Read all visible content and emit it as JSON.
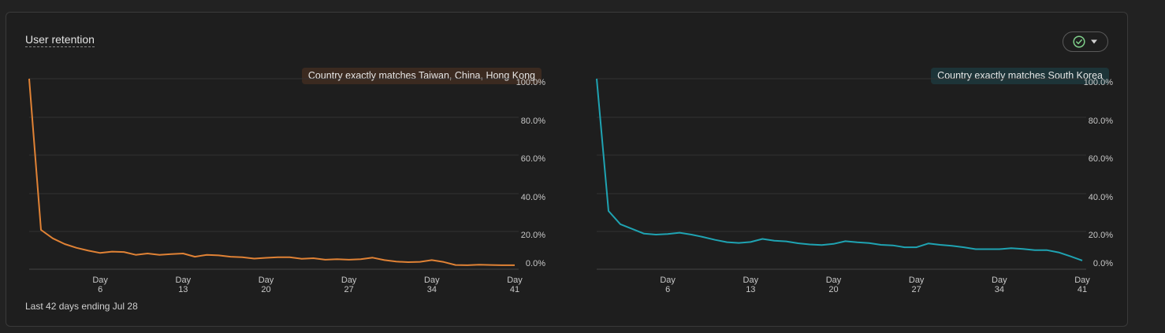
{
  "card": {
    "title": "User retention",
    "footer": "Last 42 days ending Jul 28",
    "status_icon": "check-circle-icon",
    "dropdown_icon": "caret-down-icon"
  },
  "colors": {
    "series_left": "#e08235",
    "series_right": "#1fa3b2",
    "chip_left_bg": "#3b2a20",
    "chip_right_bg": "#1d3438"
  },
  "chart_data": [
    {
      "type": "line",
      "filter_label": "Country exactly matches Taiwan, China, Hong Kong",
      "x": [
        0,
        1,
        2,
        3,
        4,
        5,
        6,
        7,
        8,
        9,
        10,
        11,
        12,
        13,
        14,
        15,
        16,
        17,
        18,
        19,
        20,
        21,
        22,
        23,
        24,
        25,
        26,
        27,
        28,
        29,
        30,
        31,
        32,
        33,
        34,
        35,
        36,
        37,
        38,
        39,
        40,
        41
      ],
      "series": [
        {
          "values": [
            100,
            20,
            15.5,
            12.5,
            10.5,
            9,
            7.8,
            8.5,
            8.3,
            6.8,
            7.5,
            6.8,
            7.2,
            7.5,
            5.8,
            6.8,
            6.5,
            5.8,
            5.5,
            4.8,
            5.2,
            5.5,
            5.5,
            4.7,
            5.0,
            4.2,
            4.5,
            4.2,
            4.5,
            5.3,
            4.0,
            3.2,
            2.9,
            3.1,
            4.0,
            3.0,
            1.4,
            1.3,
            1.6,
            1.4,
            1.3,
            1.3
          ]
        }
      ],
      "xticks": [
        {
          "day": 6,
          "label": "Day",
          "num": "6"
        },
        {
          "day": 13,
          "label": "Day",
          "num": "13"
        },
        {
          "day": 20,
          "label": "Day",
          "num": "20"
        },
        {
          "day": 27,
          "label": "Day",
          "num": "27"
        },
        {
          "day": 34,
          "label": "Day",
          "num": "34"
        },
        {
          "day": 41,
          "label": "Day",
          "num": "41"
        }
      ],
      "yticks": [
        "100.0%",
        "80.0%",
        "60.0%",
        "40.0%",
        "20.0%",
        "0.0%"
      ],
      "ylim": [
        0,
        100
      ],
      "grid": true
    },
    {
      "type": "line",
      "filter_label": "Country exactly matches South Korea",
      "x": [
        0,
        1,
        2,
        3,
        4,
        5,
        6,
        7,
        8,
        9,
        10,
        11,
        12,
        13,
        14,
        15,
        16,
        17,
        18,
        19,
        20,
        21,
        22,
        23,
        24,
        25,
        26,
        27,
        28,
        29,
        30,
        31,
        32,
        33,
        34,
        35,
        36,
        37,
        38,
        39,
        40,
        41
      ],
      "series": [
        {
          "values": [
            100,
            30,
            23,
            20.5,
            18,
            17.5,
            17.8,
            18.5,
            17.5,
            16.2,
            14.7,
            13.5,
            13.1,
            13.6,
            15.2,
            14.3,
            13.9,
            12.9,
            12.3,
            12.0,
            12.6,
            14.0,
            13.4,
            13.0,
            12.1,
            11.8,
            10.8,
            10.8,
            12.8,
            12.1,
            11.6,
            10.8,
            9.8,
            9.8,
            9.8,
            10.3,
            9.9,
            9.3,
            9.3,
            8.1,
            6.0,
            3.8
          ]
        }
      ],
      "xticks": [
        {
          "day": 6,
          "label": "Day",
          "num": "6"
        },
        {
          "day": 13,
          "label": "Day",
          "num": "13"
        },
        {
          "day": 20,
          "label": "Day",
          "num": "20"
        },
        {
          "day": 27,
          "label": "Day",
          "num": "27"
        },
        {
          "day": 34,
          "label": "Day",
          "num": "34"
        },
        {
          "day": 41,
          "label": "Day",
          "num": "41"
        }
      ],
      "yticks": [
        "100.0%",
        "80.0%",
        "60.0%",
        "40.0%",
        "20.0%",
        "0.0%"
      ],
      "ylim": [
        0,
        100
      ],
      "grid": true
    }
  ]
}
